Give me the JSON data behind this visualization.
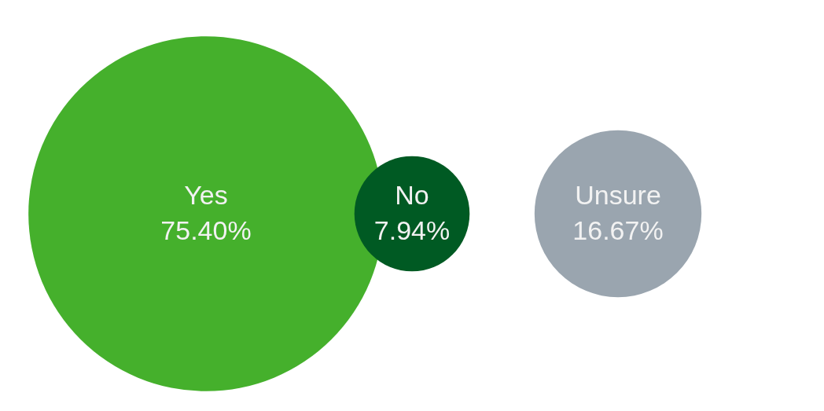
{
  "chart_data": {
    "type": "other",
    "categories": [
      "Yes",
      "No",
      "Unsure"
    ],
    "values": [
      75.4,
      7.94,
      16.67
    ],
    "value_labels": [
      "75.40%",
      "7.94%",
      "16.67%"
    ],
    "colors": [
      "#45b02c",
      "#005a23",
      "#9aa5af"
    ]
  }
}
